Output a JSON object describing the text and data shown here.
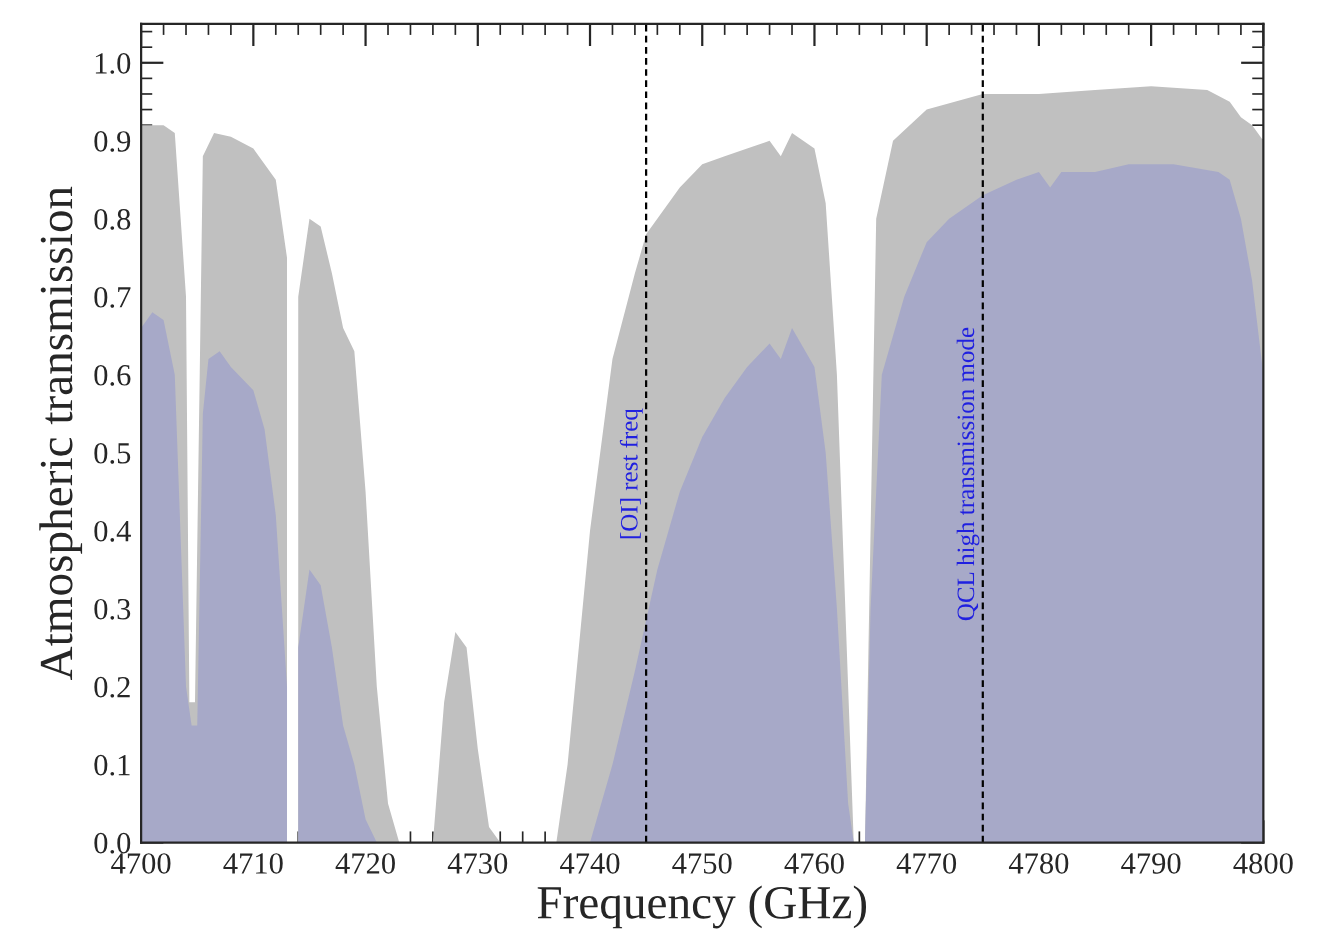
{
  "chart_data": {
    "type": "area",
    "xlabel": "Frequency (GHz)",
    "ylabel": "Atmospheric transmission",
    "series": [
      {
        "color": "#c0c0c0",
        "x": [
          4700,
          4702,
          4703,
          4704,
          4704.3,
          4704.8,
          4705.5,
          4706.5,
          4708,
          4710,
          4712,
          4713,
          4713.5,
          4714,
          4715,
          4716,
          4717,
          4718,
          4719,
          4720,
          4721,
          4722,
          4723,
          4726,
          4727,
          4728,
          4729,
          4730,
          4731,
          4732,
          4737,
          4738,
          4740,
          4742,
          4744,
          4745,
          4748,
          4750,
          4752,
          4754,
          4756,
          4757,
          4758,
          4760,
          4761,
          4762,
          4763,
          4763.5,
          4764.5,
          4765,
          4765.5,
          4767,
          4770,
          4775,
          4780,
          4785,
          4790,
          4795,
          4797,
          4798,
          4799,
          4800
        ],
        "values": [
          0.92,
          0.92,
          0.91,
          0.7,
          0.18,
          0.18,
          0.88,
          0.91,
          0.905,
          0.89,
          0.85,
          0.75,
          null,
          0.7,
          0.8,
          0.79,
          0.73,
          0.66,
          0.63,
          0.45,
          0.2,
          0.05,
          0.0,
          0.0,
          0.18,
          0.27,
          0.25,
          0.12,
          0.02,
          0.0,
          0.0,
          0.1,
          0.4,
          0.62,
          0.73,
          0.78,
          0.84,
          0.87,
          0.88,
          0.89,
          0.9,
          0.88,
          0.91,
          0.89,
          0.82,
          0.6,
          0.2,
          0.0,
          0.0,
          0.4,
          0.8,
          0.9,
          0.94,
          0.96,
          0.96,
          0.965,
          0.97,
          0.965,
          0.95,
          0.93,
          0.92,
          0.9
        ]
      },
      {
        "color": "#a7a9c8",
        "x": [
          4700,
          4701,
          4702,
          4703,
          4704,
          4704.5,
          4705,
          4705.5,
          4706,
          4707,
          4708,
          4710,
          4711,
          4712,
          4713,
          4713.5,
          4714,
          4715,
          4716,
          4717,
          4718,
          4719,
          4720,
          4721,
          4740,
          4742,
          4744,
          4746,
          4748,
          4750,
          4752,
          4754,
          4756,
          4757,
          4758,
          4760,
          4761,
          4762,
          4763,
          4763.5,
          4764.5,
          4765,
          4766,
          4768,
          4770,
          4772,
          4775,
          4778,
          4780,
          4781,
          4782,
          4785,
          4788,
          4792,
          4796,
          4797,
          4798,
          4799,
          4800
        ],
        "values": [
          0.66,
          0.68,
          0.67,
          0.6,
          0.2,
          0.15,
          0.15,
          0.55,
          0.62,
          0.63,
          0.61,
          0.58,
          0.53,
          0.42,
          0.2,
          null,
          0.25,
          0.35,
          0.33,
          0.25,
          0.15,
          0.1,
          0.03,
          0.0,
          0.0,
          0.1,
          0.22,
          0.35,
          0.45,
          0.52,
          0.57,
          0.61,
          0.64,
          0.62,
          0.66,
          0.61,
          0.5,
          0.3,
          0.05,
          0.0,
          0.0,
          0.3,
          0.6,
          0.7,
          0.77,
          0.8,
          0.83,
          0.85,
          0.86,
          0.84,
          0.86,
          0.86,
          0.87,
          0.87,
          0.86,
          0.85,
          0.8,
          0.72,
          0.6
        ]
      }
    ],
    "xlim": [
      4700,
      4800
    ],
    "xticks": [
      4700,
      4710,
      4720,
      4730,
      4740,
      4750,
      4760,
      4770,
      4780,
      4790,
      4800
    ],
    "ylim": [
      0,
      1.05
    ],
    "yticks": [
      {
        "value": 0,
        "label": "0.0"
      },
      0.1,
      0.2,
      0.3,
      0.4,
      0.5,
      0.6,
      0.7,
      0.8,
      0.9,
      {
        "value": 1,
        "label": "1.0"
      }
    ],
    "ref_lines": [
      {
        "axis": "x",
        "value": 4745,
        "label": "[OI] rest freq",
        "color": "#000000",
        "line_style": "dashed"
      },
      {
        "axis": "x",
        "value": 4775,
        "label": "QCL high transmission mode",
        "color": "#000000",
        "line_style": "dashed"
      }
    ],
    "grid": false,
    "legend": false
  }
}
